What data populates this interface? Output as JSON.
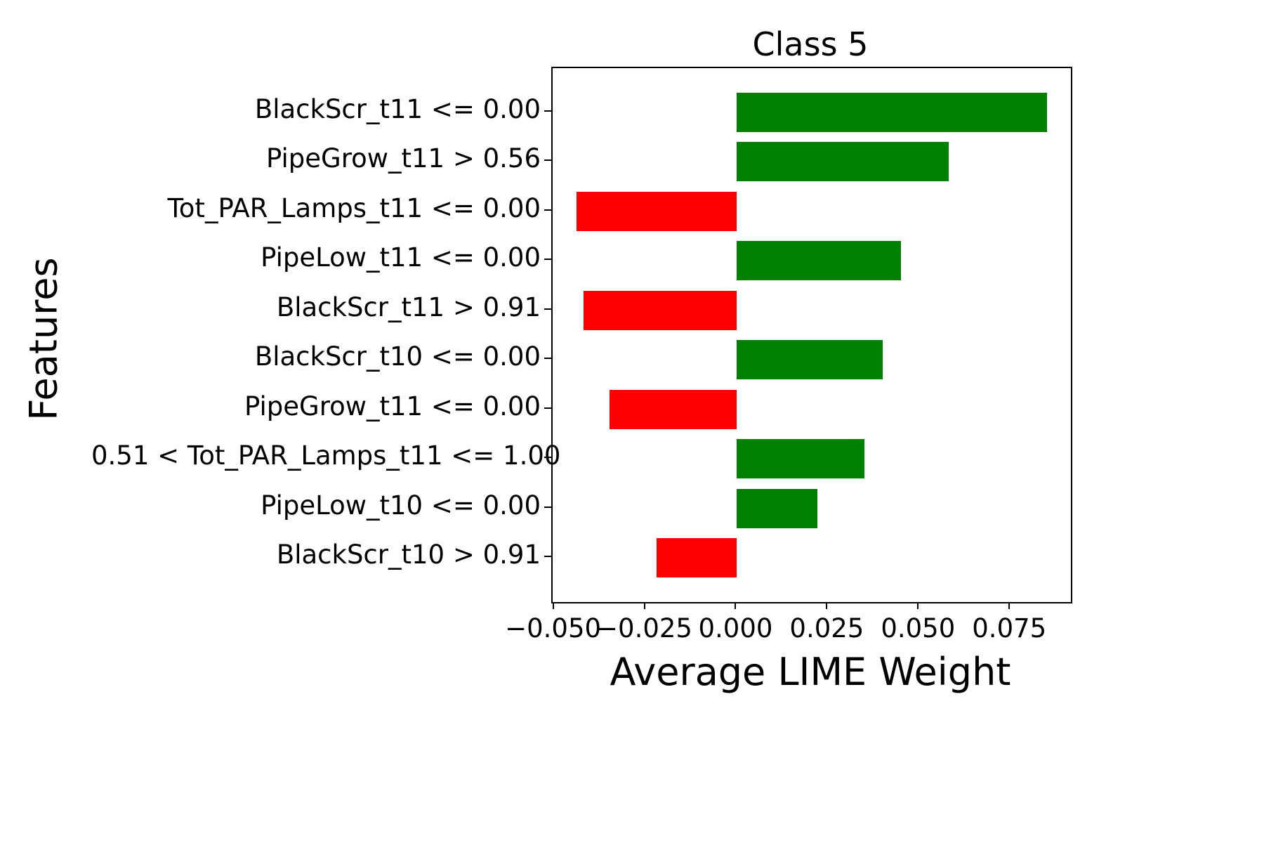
{
  "figure": {
    "title": "Class 5",
    "xlabel": "Average LIME Weight",
    "ylabel": "Features"
  },
  "chart_data": {
    "type": "bar",
    "orientation": "horizontal",
    "title": "Class 5",
    "xlabel": "Average LIME Weight",
    "ylabel": "Features",
    "categories": [
      "BlackScr_t11 <= 0.00",
      "PipeGrow_t11 > 0.56",
      "Tot_PAR_Lamps_t11 <= 0.00",
      "PipeLow_t11 <= 0.00",
      "BlackScr_t11 > 0.91",
      "BlackScr_t10 <= 0.00",
      "PipeGrow_t11 <= 0.00",
      "0.51 < Tot_PAR_Lamps_t11 <= 1.00",
      "PipeLow_t10 <= 0.00",
      "BlackScr_t10 > 0.91"
    ],
    "values": [
      0.085,
      0.058,
      -0.044,
      0.045,
      -0.042,
      0.04,
      -0.035,
      0.035,
      0.022,
      -0.022
    ],
    "colors": {
      "positive": "#008000",
      "negative": "#ff0000"
    },
    "xlim": [
      -0.0505,
      0.0915
    ],
    "xticks": [
      -0.05,
      -0.025,
      0.0,
      0.025,
      0.05,
      0.075
    ],
    "xtick_labels": [
      "−0.050",
      "−0.025",
      "0.000",
      "0.025",
      "0.050",
      "0.075"
    ],
    "grid": false,
    "legend": "none",
    "bar_sign_meaning": "green = positive LIME weight, red = negative LIME weight"
  }
}
